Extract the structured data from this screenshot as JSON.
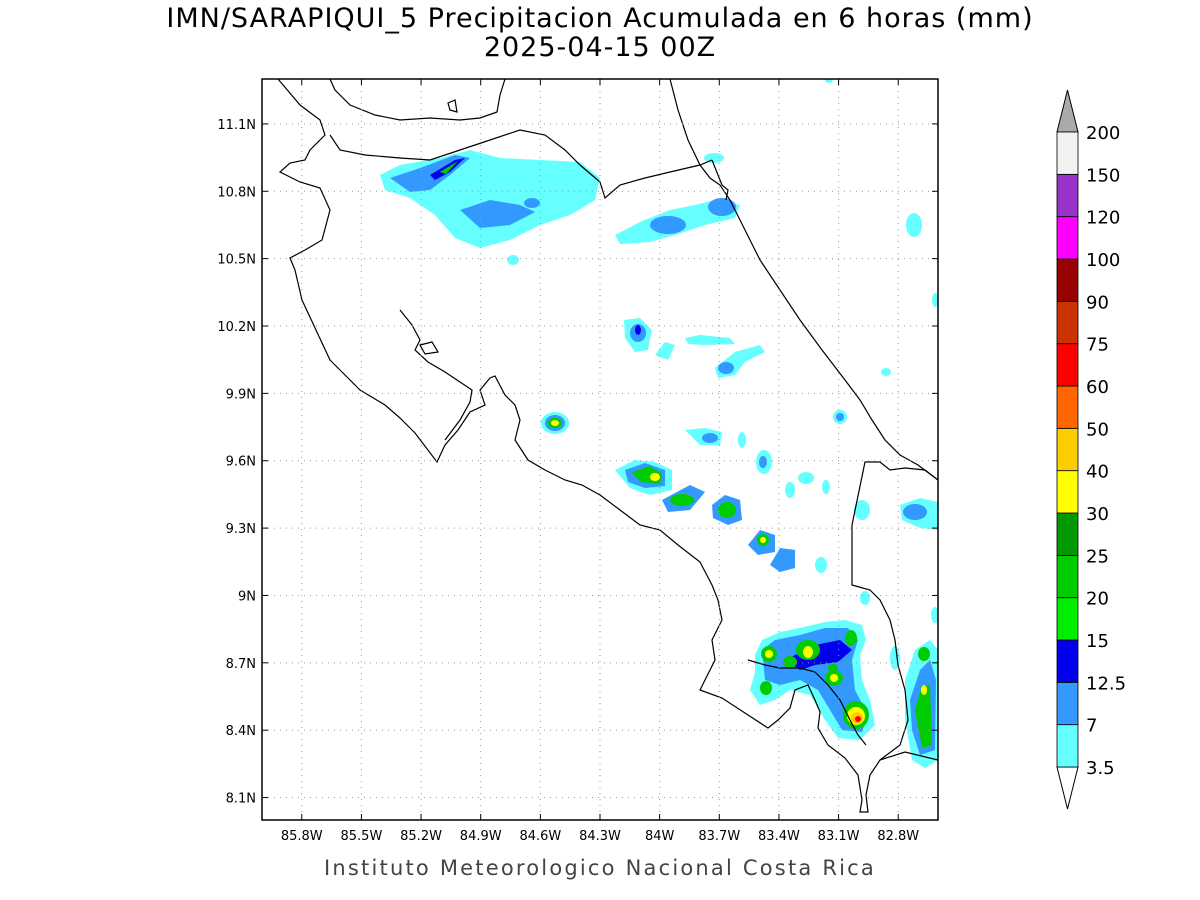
{
  "title": {
    "line1": "IMN/SARAPIQUI_5 Precipitacion Acumulada en 6 horas (mm)",
    "line2": "2025-04-15 00Z"
  },
  "footer": "Instituto Meteorologico Nacional Costa Rica",
  "map": {
    "lon_range": [
      -86.0,
      -82.6
    ],
    "lat_range": [
      8.0,
      11.3
    ],
    "lat_ticks": [
      "11.1N",
      "10.8N",
      "10.5N",
      "10.2N",
      "9.9N",
      "9.6N",
      "9.3N",
      "9N",
      "8.7N",
      "8.4N",
      "8.1N"
    ],
    "lon_ticks": [
      "85.8W",
      "85.5W",
      "85.2W",
      "84.9W",
      "84.6W",
      "84.3W",
      "84W",
      "83.7W",
      "83.4W",
      "83.1W",
      "82.8W"
    ],
    "grid": true
  },
  "colorbar": {
    "units": "mm",
    "levels": [
      "3.5",
      "7",
      "12.5",
      "15",
      "20",
      "25",
      "30",
      "40",
      "50",
      "60",
      "75",
      "90",
      "100",
      "120",
      "150",
      "200"
    ],
    "colors": [
      "#66ffff",
      "#3399ff",
      "#0000ee",
      "#00ee00",
      "#00cc00",
      "#009900",
      "#ffff00",
      "#ffcc00",
      "#ff6600",
      "#ff0000",
      "#cc3300",
      "#990000",
      "#ff00ff",
      "#9933cc",
      "#f2f2f2"
    ],
    "over_color": "#aaaaaa",
    "under_color": "#ffffff"
  }
}
